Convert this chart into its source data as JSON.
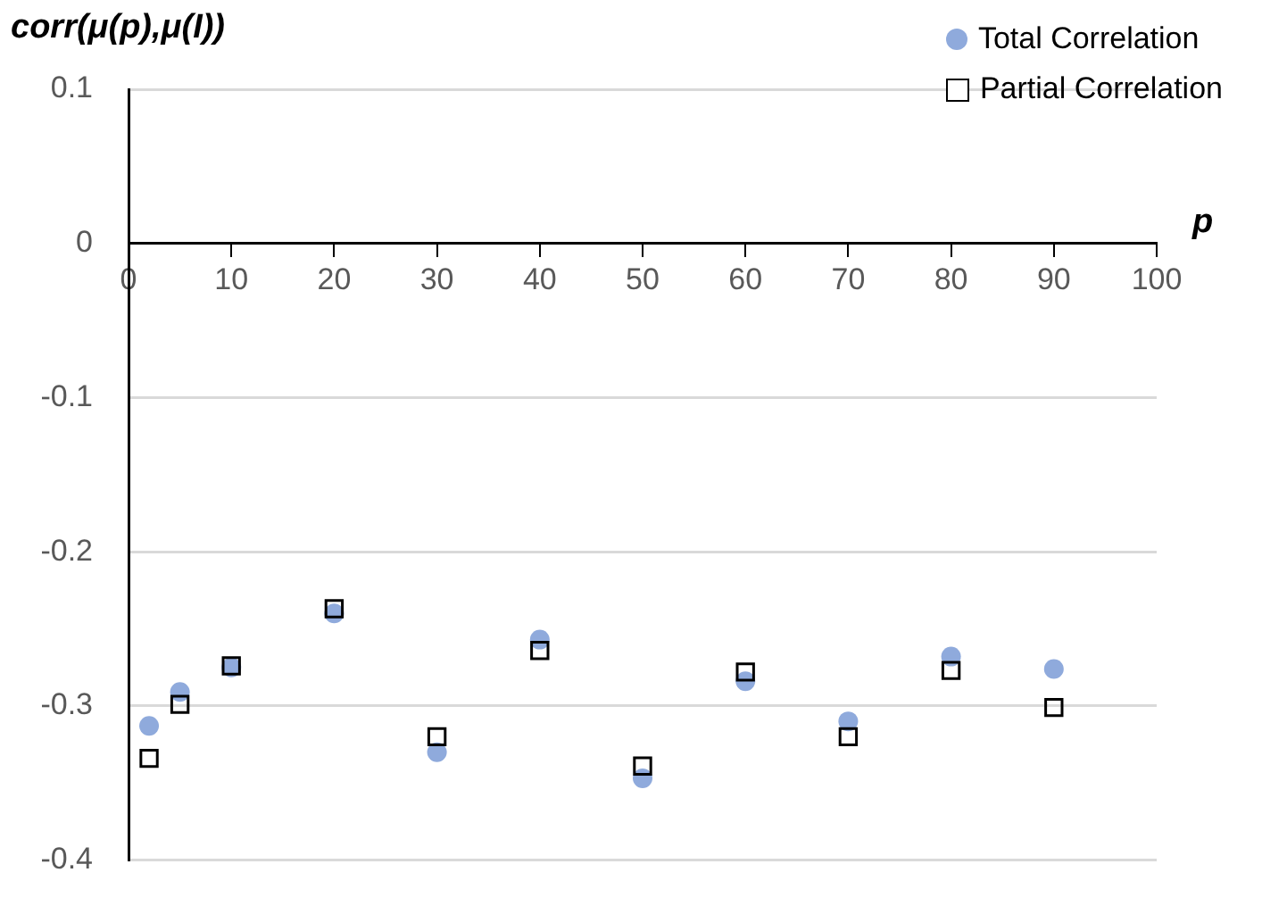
{
  "chart_data": {
    "type": "scatter",
    "ylabel": "corr(μ(p),μ(I))",
    "xlabel": "p",
    "x": [
      2,
      5,
      10,
      20,
      30,
      40,
      50,
      60,
      70,
      80,
      90
    ],
    "series": [
      {
        "name": "Total Correlation",
        "color": "#8faadc",
        "marker": "circle",
        "values": [
          -0.313,
          -0.291,
          -0.275,
          -0.24,
          -0.33,
          -0.257,
          -0.347,
          -0.284,
          -0.31,
          -0.268,
          -0.276
        ]
      },
      {
        "name": "Partial Correlation",
        "color": "#000000",
        "marker": "square",
        "values": [
          -0.334,
          -0.299,
          -0.274,
          -0.237,
          -0.32,
          -0.264,
          -0.339,
          -0.278,
          -0.32,
          -0.277,
          -0.301
        ]
      }
    ],
    "xlim": [
      0,
      100
    ],
    "xticks": [
      0,
      10,
      20,
      30,
      40,
      50,
      60,
      70,
      80,
      90,
      100
    ],
    "ylim": [
      -0.4,
      0.1
    ],
    "yticks": [
      -0.4,
      -0.3,
      -0.2,
      -0.1,
      0,
      0.1
    ],
    "grid": "y",
    "legend": "top right"
  }
}
